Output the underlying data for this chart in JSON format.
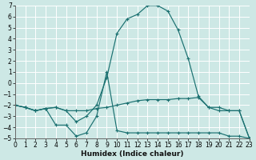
{
  "xlabel": "Humidex (Indice chaleur)",
  "xlim": [
    0,
    23
  ],
  "ylim": [
    -5,
    7
  ],
  "yticks": [
    -5,
    -4,
    -3,
    -2,
    -1,
    0,
    1,
    2,
    3,
    4,
    5,
    6,
    7
  ],
  "xticks": [
    0,
    1,
    2,
    3,
    4,
    5,
    6,
    7,
    8,
    9,
    10,
    11,
    12,
    13,
    14,
    15,
    16,
    17,
    18,
    19,
    20,
    21,
    22,
    23
  ],
  "bg_color": "#cde8e5",
  "grid_major_color": "#ffffff",
  "grid_minor_color": "#ddf0ee",
  "line_color": "#1a7070",
  "series": [
    {
      "x": [
        0,
        1,
        2,
        3,
        4,
        5,
        6,
        7,
        8,
        9,
        10,
        11,
        12,
        13,
        14,
        15,
        16,
        17,
        18,
        19,
        20,
        21,
        22,
        23
      ],
      "y": [
        -2.0,
        -2.2,
        -2.5,
        -2.3,
        -2.2,
        -2.5,
        -3.5,
        -3.0,
        -2.0,
        0.5,
        4.5,
        5.8,
        6.2,
        7.0,
        7.0,
        6.5,
        4.8,
        2.2,
        -1.2,
        -2.2,
        -2.2,
        -2.5,
        -2.5,
        -5.0
      ]
    },
    {
      "x": [
        0,
        1,
        2,
        3,
        4,
        5,
        6,
        7,
        8,
        9,
        10,
        11,
        12,
        13,
        14,
        15,
        16,
        17,
        18,
        19,
        20,
        21,
        22,
        23
      ],
      "y": [
        -2.0,
        -2.2,
        -2.5,
        -2.3,
        -2.2,
        -2.5,
        -2.5,
        -2.5,
        -2.3,
        -2.2,
        -2.0,
        -1.8,
        -1.6,
        -1.5,
        -1.5,
        -1.5,
        -1.4,
        -1.4,
        -1.3,
        -2.2,
        -2.5,
        -2.5,
        -2.5,
        -5.0
      ]
    },
    {
      "x": [
        0,
        1,
        2,
        3,
        4,
        5,
        6,
        7,
        8,
        9,
        10,
        11,
        12,
        13,
        14,
        15,
        16,
        17,
        18,
        19,
        20,
        21,
        22,
        23
      ],
      "y": [
        -2.0,
        -2.2,
        -2.5,
        -2.3,
        -3.8,
        -3.8,
        -4.8,
        -4.5,
        -3.0,
        1.0,
        -4.3,
        -4.5,
        -4.5,
        -4.5,
        -4.5,
        -4.5,
        -4.5,
        -4.5,
        -4.5,
        -4.5,
        -4.5,
        -4.8,
        -4.8,
        -5.0
      ]
    }
  ]
}
